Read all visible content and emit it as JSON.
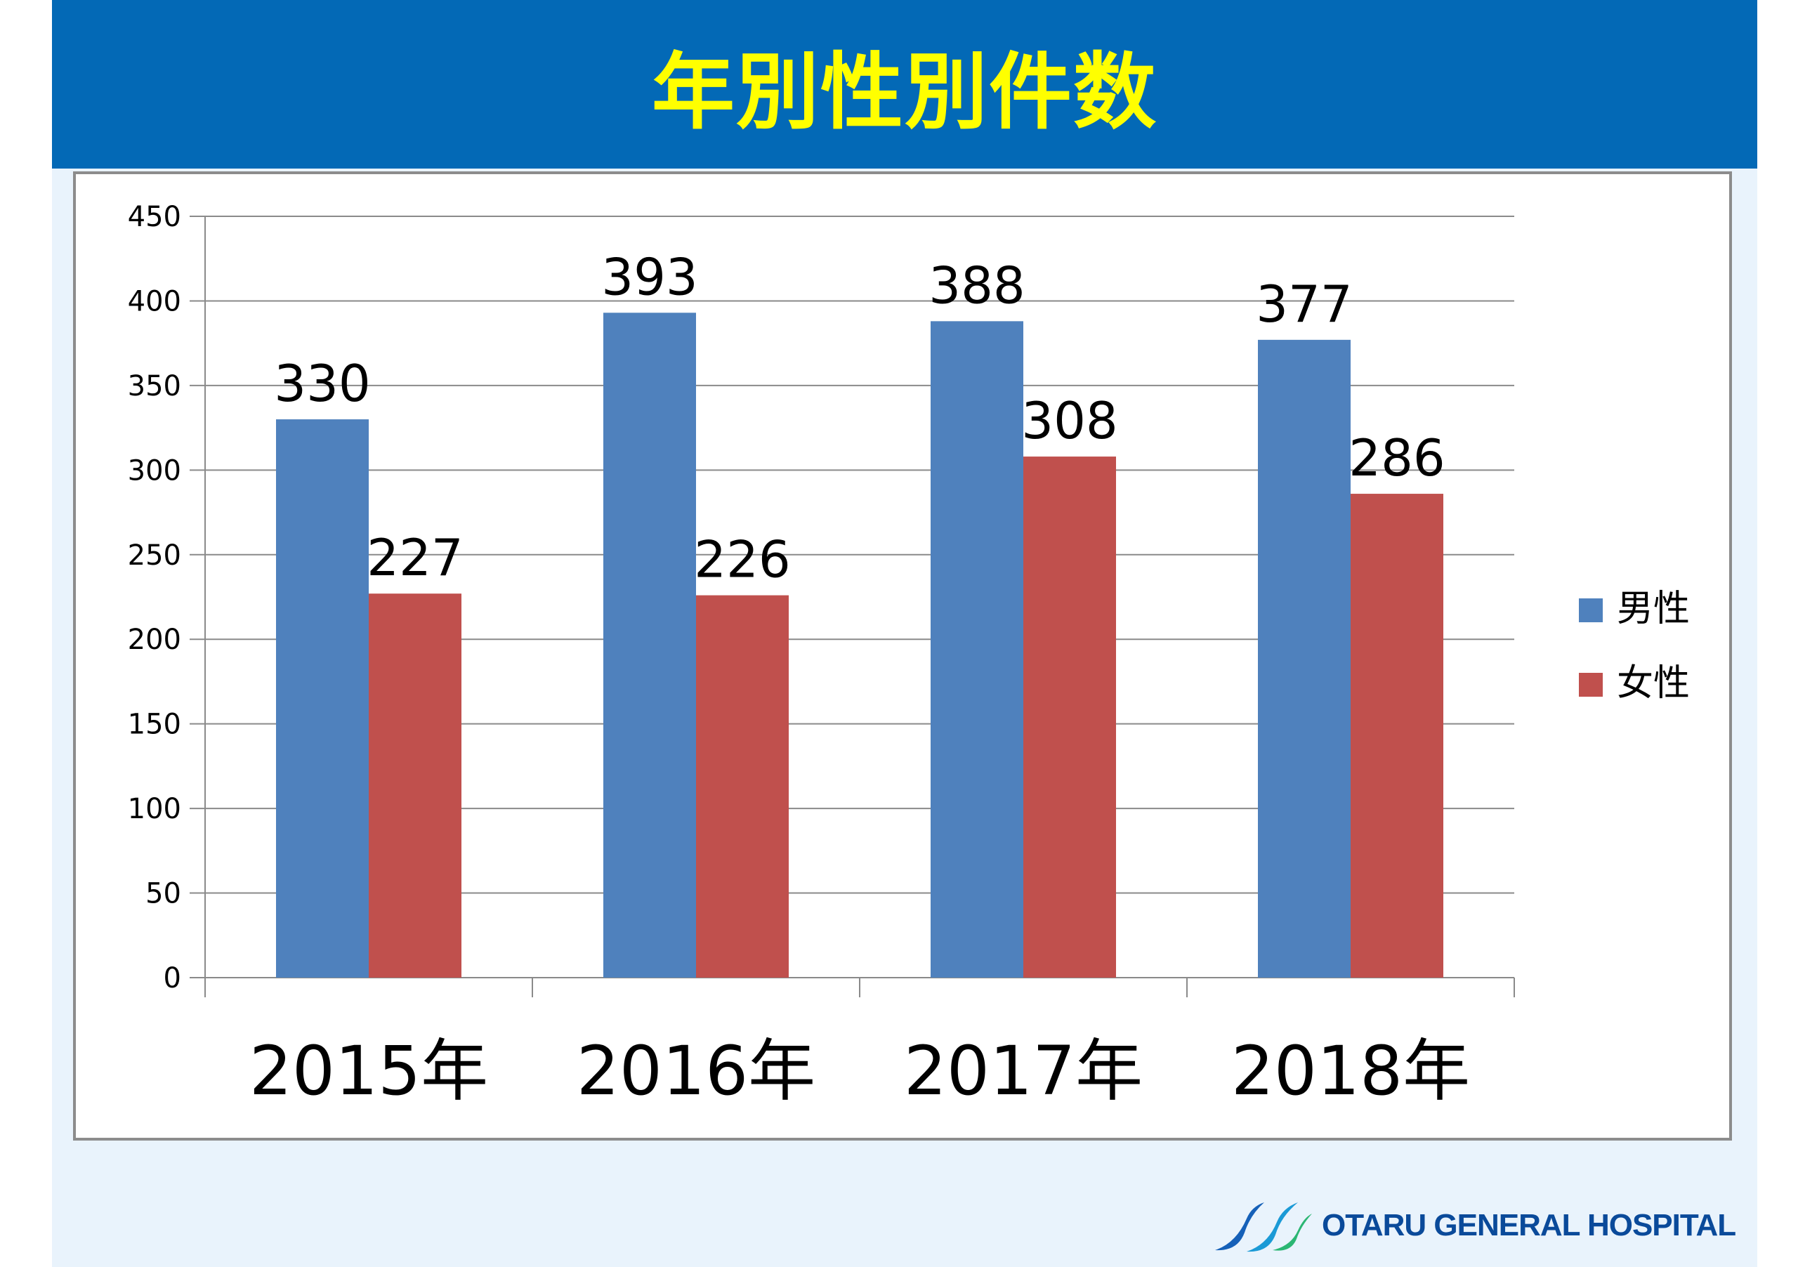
{
  "slide": {
    "title": "年別性別件数",
    "title_color": "#ffff00",
    "header_color": "#0369b6",
    "footer_bg": "#e9f3fc"
  },
  "footer": {
    "logo_text": "OTARU GENERAL HOSPITAL",
    "logo_icon": "hospital-logo-icon"
  },
  "chart_data": {
    "type": "bar",
    "title": "",
    "xlabel": "",
    "ylabel": "",
    "categories": [
      "2015年",
      "2016年",
      "2017年",
      "2018年"
    ],
    "series": [
      {
        "name": "男性",
        "values": [
          330,
          393,
          388,
          377
        ],
        "color": "#4f81bd"
      },
      {
        "name": "女性",
        "values": [
          227,
          226,
          308,
          286
        ],
        "color": "#c0504d"
      }
    ],
    "ylim": [
      0,
      450
    ],
    "yticks": [
      0,
      50,
      100,
      150,
      200,
      250,
      300,
      350,
      400,
      450
    ],
    "grid": true,
    "legend": "right",
    "data_labels": true
  }
}
